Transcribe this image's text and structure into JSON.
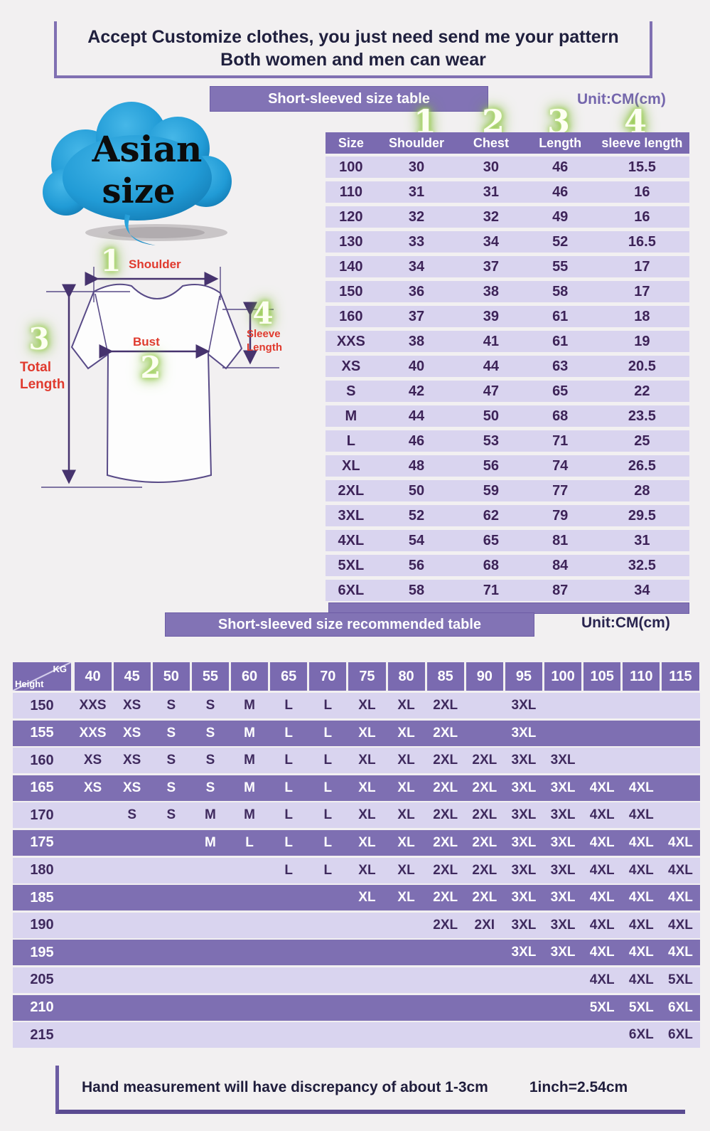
{
  "title_box": {
    "line1": "Accept Customize clothes, you just need send me your pattern",
    "line2": "Both women and men can wear"
  },
  "size_table": {
    "banner": "Short-sleeved size  table",
    "unit": "Unit:CM(cm)",
    "col_numbers": [
      "1",
      "2",
      "3",
      "4"
    ],
    "columns": [
      "Size",
      "Shoulder",
      "Chest",
      "Length",
      "sleeve length"
    ],
    "rows": [
      [
        "100",
        "30",
        "30",
        "46",
        "15.5"
      ],
      [
        "110",
        "31",
        "31",
        "46",
        "16"
      ],
      [
        "120",
        "32",
        "32",
        "49",
        "16"
      ],
      [
        "130",
        "33",
        "34",
        "52",
        "16.5"
      ],
      [
        "140",
        "34",
        "37",
        "55",
        "17"
      ],
      [
        "150",
        "36",
        "38",
        "58",
        "17"
      ],
      [
        "160",
        "37",
        "39",
        "61",
        "18"
      ],
      [
        "XXS",
        "38",
        "41",
        "61",
        "19"
      ],
      [
        "XS",
        "40",
        "44",
        "63",
        "20.5"
      ],
      [
        "S",
        "42",
        "47",
        "65",
        "22"
      ],
      [
        "M",
        "44",
        "50",
        "68",
        "23.5"
      ],
      [
        "L",
        "46",
        "53",
        "71",
        "25"
      ],
      [
        "XL",
        "48",
        "56",
        "74",
        "26.5"
      ],
      [
        "2XL",
        "50",
        "59",
        "77",
        "28"
      ],
      [
        "3XL",
        "52",
        "62",
        "79",
        "29.5"
      ],
      [
        "4XL",
        "54",
        "65",
        "81",
        "31"
      ],
      [
        "5XL",
        "56",
        "68",
        "84",
        "32.5"
      ],
      [
        "6XL",
        "58",
        "71",
        "87",
        "34"
      ]
    ]
  },
  "diagram": {
    "cloud_line1": "Asian",
    "cloud_line2": "size",
    "shoulder_num": "1",
    "shoulder_label": "Shoulder",
    "bust_num": "2",
    "bust_label": "Bust",
    "total_num": "3",
    "total_label_1": "Total",
    "total_label_2": "Length",
    "sleeve_num": "4",
    "sleeve_label_1": "Sleeve",
    "sleeve_label_2": "Length"
  },
  "recommended_table": {
    "banner": "Short-sleeved size recommended table",
    "unit": "Unit:CM(cm)",
    "corner_top": "KG",
    "corner_bottom": "Height",
    "weights": [
      "40",
      "45",
      "50",
      "55",
      "60",
      "65",
      "70",
      "75",
      "80",
      "85",
      "90",
      "95",
      "100",
      "105",
      "110",
      "115"
    ],
    "rows": [
      {
        "height": "150",
        "cells": [
          "XXS",
          "XS",
          "S",
          "S",
          "M",
          "L",
          "L",
          "XL",
          "XL",
          "2XL",
          "",
          "3XL",
          "",
          "",
          "",
          ""
        ]
      },
      {
        "height": "155",
        "cells": [
          "XXS",
          "XS",
          "S",
          "S",
          "M",
          "L",
          "L",
          "XL",
          "XL",
          "2XL",
          "",
          "3XL",
          "",
          "",
          "",
          ""
        ]
      },
      {
        "height": "160",
        "cells": [
          "XS",
          "XS",
          "S",
          "S",
          "M",
          "L",
          "L",
          "XL",
          "XL",
          "2XL",
          "2XL",
          "3XL",
          "3XL",
          "",
          "",
          ""
        ]
      },
      {
        "height": "165",
        "cells": [
          "XS",
          "XS",
          "S",
          "S",
          "M",
          "L",
          "L",
          "XL",
          "XL",
          "2XL",
          "2XL",
          "3XL",
          "3XL",
          "4XL",
          "4XL",
          ""
        ]
      },
      {
        "height": "170",
        "cells": [
          "",
          "S",
          "S",
          "M",
          "M",
          "L",
          "L",
          "XL",
          "XL",
          "2XL",
          "2XL",
          "3XL",
          "3XL",
          "4XL",
          "4XL",
          ""
        ]
      },
      {
        "height": "175",
        "cells": [
          "",
          "",
          "",
          "M",
          "L",
          "L",
          "L",
          "XL",
          "XL",
          "2XL",
          "2XL",
          "3XL",
          "3XL",
          "4XL",
          "4XL",
          "4XL"
        ]
      },
      {
        "height": "180",
        "cells": [
          "",
          "",
          "",
          "",
          "",
          "L",
          "L",
          "XL",
          "XL",
          "2XL",
          "2XL",
          "3XL",
          "3XL",
          "4XL",
          "4XL",
          "4XL"
        ]
      },
      {
        "height": "185",
        "cells": [
          "",
          "",
          "",
          "",
          "",
          "",
          "",
          "XL",
          "XL",
          "2XL",
          "2XL",
          "3XL",
          "3XL",
          "4XL",
          "4XL",
          "4XL"
        ]
      },
      {
        "height": "190",
        "cells": [
          "",
          "",
          "",
          "",
          "",
          "",
          "",
          "",
          "",
          "2XL",
          "2XI",
          "3XL",
          "3XL",
          "4XL",
          "4XL",
          "4XL"
        ]
      },
      {
        "height": "195",
        "cells": [
          "",
          "",
          "",
          "",
          "",
          "",
          "",
          "",
          "",
          "",
          "",
          "3XL",
          "3XL",
          "4XL",
          "4XL",
          "4XL"
        ]
      },
      {
        "height": "205",
        "cells": [
          "",
          "",
          "",
          "",
          "",
          "",
          "",
          "",
          "",
          "",
          "",
          "",
          "",
          "4XL",
          "4XL",
          "5XL"
        ]
      },
      {
        "height": "210",
        "cells": [
          "",
          "",
          "",
          "",
          "",
          "",
          "",
          "",
          "",
          "",
          "",
          "",
          "",
          "5XL",
          "5XL",
          "6XL"
        ]
      },
      {
        "height": "215",
        "cells": [
          "",
          "",
          "",
          "",
          "",
          "",
          "",
          "",
          "",
          "",
          "",
          "",
          "",
          "",
          "6XL",
          "6XL"
        ]
      }
    ]
  },
  "footer": {
    "note": "Hand measurement will have discrepancy of about  1-3cm",
    "conversion": "1inch=2.54cm"
  },
  "colors": {
    "banner_purple": "#8273b5",
    "table_header_purple": "#7a6ab0",
    "row_light": "#d9d4ef",
    "row_dark": "#7e6fb2",
    "accent_red": "#e03a2e",
    "accent_green": "#8dc63f",
    "cloud_blue": "#219bd6",
    "text_dark": "#20203e"
  }
}
